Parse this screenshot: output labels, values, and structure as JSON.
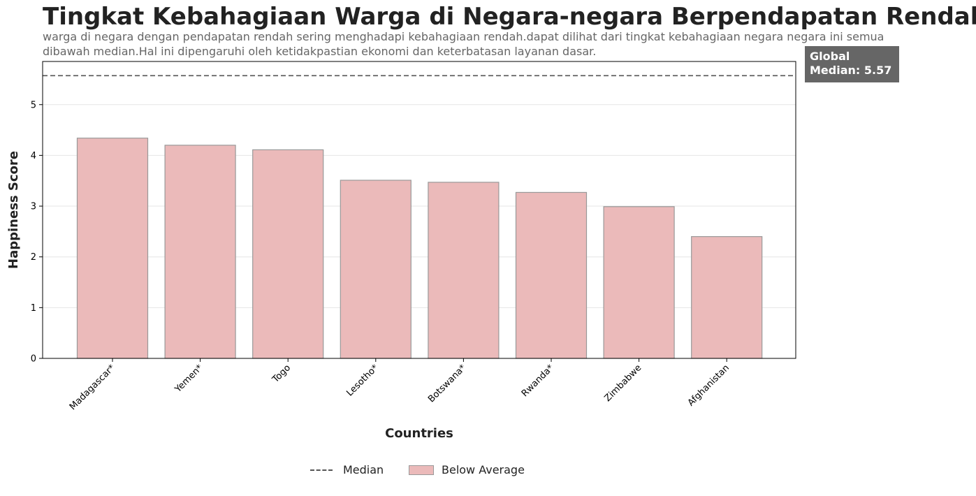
{
  "chart_data": {
    "type": "bar",
    "title": "Tingkat Kebahagiaan Warga di Negara-negara Berpendapatan Rendah",
    "subtitle": "warga di negara dengan pendapatan rendah sering menghadapi kebahagiaan rendah.dapat dilihat dari tingkat kebahagiaan negara negara ini semua dibawah median.Hal ini dipengaruhi oleh ketidakpastian ekonomi dan keterbatasan layanan dasar.",
    "xlabel": "Countries",
    "ylabel": "Happiness Score",
    "categories": [
      "Madagascar*",
      "Yemen*",
      "Togo",
      "Lesotho*",
      "Botswana*",
      "Rwanda*",
      "Zimbabwe",
      "Afghanistan"
    ],
    "values": [
      4.34,
      4.2,
      4.11,
      3.51,
      3.47,
      3.27,
      2.99,
      2.4
    ],
    "ylim": [
      0,
      5.85
    ],
    "yticks": [
      "0",
      "1",
      "2",
      "3",
      "4",
      "5"
    ],
    "median": 5.57,
    "median_annotation": "Global Median: 5.57",
    "legend": {
      "placement": "bottom-center",
      "entries": [
        "Median",
        "Below Average"
      ]
    },
    "grid": "y-only",
    "colors": {
      "bar": "#ebbaba",
      "bar_edge": "#999999",
      "median_line": "#555555",
      "annotation_bg": "#666666"
    }
  }
}
